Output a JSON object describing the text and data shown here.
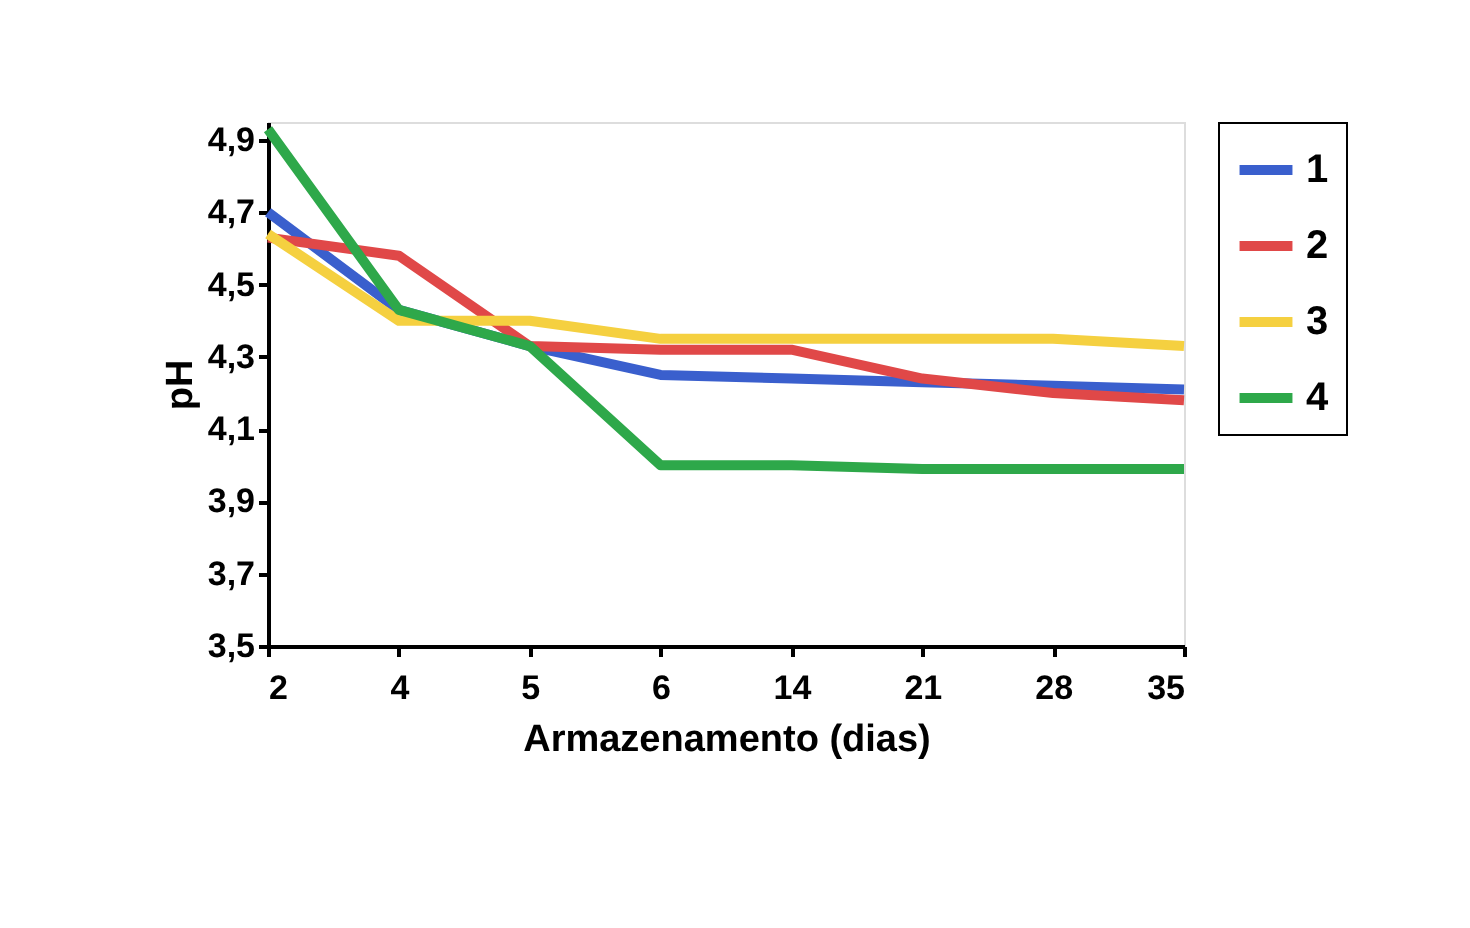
{
  "chart_data": {
    "type": "line",
    "xlabel": "Armazenamento (dias)",
    "ylabel": "pH",
    "categories": [
      "2",
      "4",
      "5",
      "6",
      "14",
      "21",
      "28",
      "35"
    ],
    "series": [
      {
        "name": "1",
        "color": "#3a5fcd",
        "values": [
          4.7,
          4.43,
          4.33,
          4.25,
          4.24,
          4.23,
          4.22,
          4.21
        ]
      },
      {
        "name": "2",
        "color": "#e04848",
        "values": [
          4.63,
          4.58,
          4.33,
          4.32,
          4.32,
          4.24,
          4.2,
          4.18
        ]
      },
      {
        "name": "3",
        "color": "#f5d040",
        "values": [
          4.64,
          4.4,
          4.4,
          4.35,
          4.35,
          4.35,
          4.35,
          4.33
        ]
      },
      {
        "name": "4",
        "color": "#2ea84a",
        "values": [
          4.93,
          4.43,
          4.33,
          4.0,
          4.0,
          3.99,
          3.99,
          3.99
        ]
      }
    ],
    "ylim": [
      3.5,
      4.95
    ],
    "yticks": [
      {
        "value": 3.5,
        "label": "3,5"
      },
      {
        "value": 3.7,
        "label": "3,7"
      },
      {
        "value": 3.9,
        "label": "3,9"
      },
      {
        "value": 4.1,
        "label": "4,1"
      },
      {
        "value": 4.3,
        "label": "4,3"
      },
      {
        "value": 4.5,
        "label": "4,5"
      },
      {
        "value": 4.7,
        "label": "4,7"
      },
      {
        "value": 4.9,
        "label": "4,9"
      }
    ],
    "grid": false,
    "legend": "right",
    "marker": "none",
    "line_style": "solid"
  }
}
